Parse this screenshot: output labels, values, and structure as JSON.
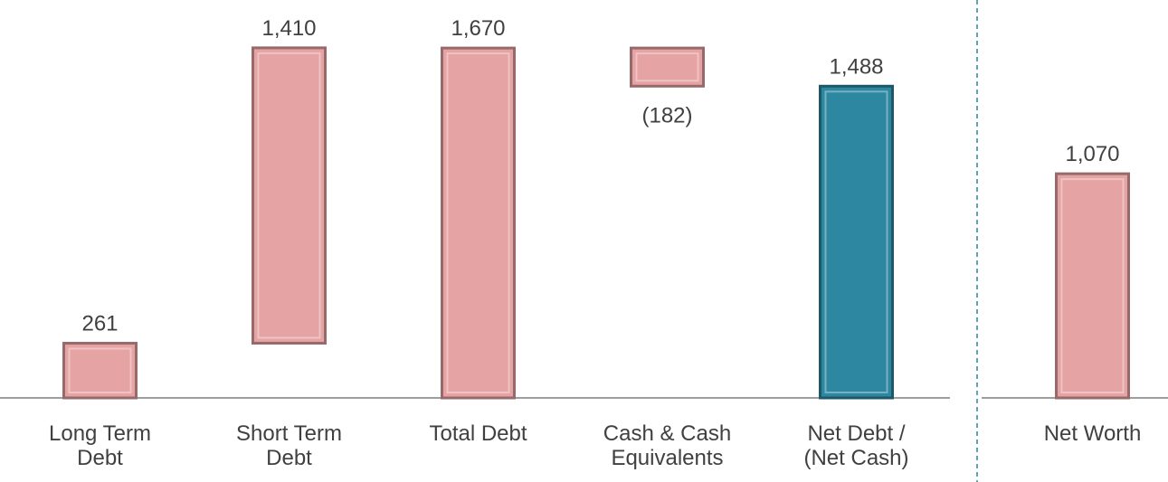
{
  "chart_data": [
    {
      "type": "waterfall",
      "categories": [
        "Long Term Debt",
        "Short Term Debt",
        "Total Debt",
        "Cash & Cash Equivalents",
        "Net Debt / (Net Cash)"
      ],
      "values": [
        261,
        1410,
        1670,
        -182,
        1488
      ],
      "value_labels": [
        "261",
        "1,410",
        "1,670",
        "(182)",
        "1,488"
      ],
      "is_total": [
        false,
        false,
        true,
        false,
        true
      ],
      "colors": [
        "#e6a3a3",
        "#e6a3a3",
        "#e6a3a3",
        "#e6a3a3",
        "#2e87a0"
      ],
      "ylim": [
        0,
        1800
      ]
    },
    {
      "type": "bar",
      "categories": [
        "Net Worth"
      ],
      "values": [
        1070
      ],
      "value_labels": [
        "1,070"
      ],
      "colors": [
        "#e6a3a3"
      ],
      "ylim": [
        0,
        1800
      ]
    }
  ]
}
